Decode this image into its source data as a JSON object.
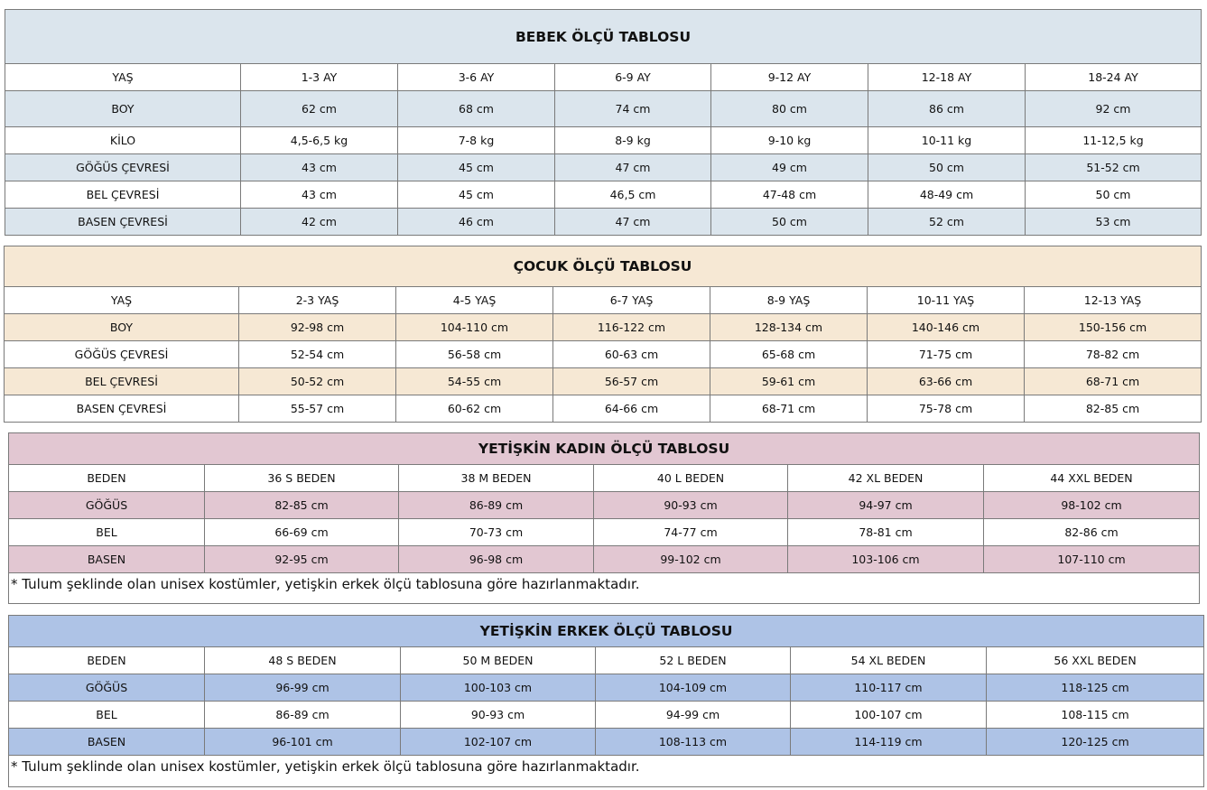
{
  "tables": [
    {
      "id": "bebek",
      "title": "BEBEK ÖLÇÜ TABLOSU",
      "color": "#dbe5ed",
      "header": [
        "YAŞ",
        "1-3 AY",
        "3-6 AY",
        "6-9 AY",
        "9-12 AY",
        "12-18 AY",
        "18-24 AY"
      ],
      "rows": [
        [
          "BOY",
          "62 cm",
          "68 cm",
          "74 cm",
          "80 cm",
          "86 cm",
          "92 cm"
        ],
        [
          "KİLO",
          "4,5-6,5 kg",
          "7-8 kg",
          "8-9 kg",
          "9-10 kg",
          "10-11 kg",
          "11-12,5 kg"
        ],
        [
          "GÖĞÜS ÇEVRESİ",
          "43 cm",
          "45 cm",
          "47 cm",
          "49 cm",
          "50 cm",
          "51-52 cm"
        ],
        [
          "BEL ÇEVRESİ",
          "43 cm",
          "45 cm",
          "46,5 cm",
          "47-48 cm",
          "48-49 cm",
          "50 cm"
        ],
        [
          "BASEN ÇEVRESİ",
          "42 cm",
          "46 cm",
          "47 cm",
          "50 cm",
          "52 cm",
          "53 cm"
        ]
      ]
    },
    {
      "id": "cocuk",
      "title": "ÇOCUK ÖLÇÜ TABLOSU",
      "color": "#f6e8d4",
      "header": [
        "YAŞ",
        "2-3 YAŞ",
        "4-5 YAŞ",
        "6-7 YAŞ",
        "8-9 YAŞ",
        "10-11 YAŞ",
        "12-13 YAŞ"
      ],
      "rows": [
        [
          "BOY",
          "92-98 cm",
          "104-110 cm",
          "116-122 cm",
          "128-134 cm",
          "140-146 cm",
          "150-156 cm"
        ],
        [
          "GÖĞÜS ÇEVRESİ",
          "52-54 cm",
          "56-58 cm",
          "60-63 cm",
          "65-68 cm",
          "71-75 cm",
          "78-82 cm"
        ],
        [
          "BEL ÇEVRESİ",
          "50-52 cm",
          "54-55 cm",
          "56-57 cm",
          "59-61 cm",
          "63-66 cm",
          "68-71 cm"
        ],
        [
          "BASEN ÇEVRESİ",
          "55-57 cm",
          "60-62 cm",
          "64-66 cm",
          "68-71 cm",
          "75-78 cm",
          "82-85 cm"
        ]
      ]
    },
    {
      "id": "kadin",
      "title": "YETİŞKİN KADIN ÖLÇÜ TABLOSU",
      "color": "#e2c7d2",
      "header": [
        "BEDEN",
        "36 S BEDEN",
        "38 M BEDEN",
        "40 L BEDEN",
        "42 XL BEDEN",
        "44 XXL BEDEN"
      ],
      "rows": [
        [
          "GÖĞÜS",
          "82-85 cm",
          "86-89 cm",
          "90-93 cm",
          "94-97 cm",
          "98-102 cm"
        ],
        [
          "BEL",
          "66-69 cm",
          "70-73 cm",
          "74-77 cm",
          "78-81 cm",
          "82-86 cm"
        ],
        [
          "BASEN",
          "92-95 cm",
          "96-98 cm",
          "99-102 cm",
          "103-106 cm",
          "107-110 cm"
        ]
      ],
      "note": "* Tulum şeklinde olan unisex kostümler, yetişkin erkek ölçü tablosuna göre hazırlanmaktadır."
    },
    {
      "id": "erkek",
      "title": "YETİŞKİN ERKEK ÖLÇÜ TABLOSU",
      "color": "#aec3e6",
      "header": [
        "BEDEN",
        "48 S BEDEN",
        "50 M BEDEN",
        "52 L BEDEN",
        "54 XL BEDEN",
        "56 XXL BEDEN"
      ],
      "rows": [
        [
          "GÖĞÜS",
          "96-99 cm",
          "100-103 cm",
          "104-109 cm",
          "110-117 cm",
          "118-125 cm"
        ],
        [
          "BEL",
          "86-89 cm",
          "90-93 cm",
          "94-99 cm",
          "100-107 cm",
          "108-115 cm"
        ],
        [
          "BASEN",
          "96-101 cm",
          "102-107 cm",
          "108-113 cm",
          "114-119 cm",
          "120-125 cm"
        ]
      ],
      "note": "* Tulum şeklinde olan unisex kostümler, yetişkin erkek ölçü  tablosuna göre hazırlanmaktadır."
    }
  ]
}
